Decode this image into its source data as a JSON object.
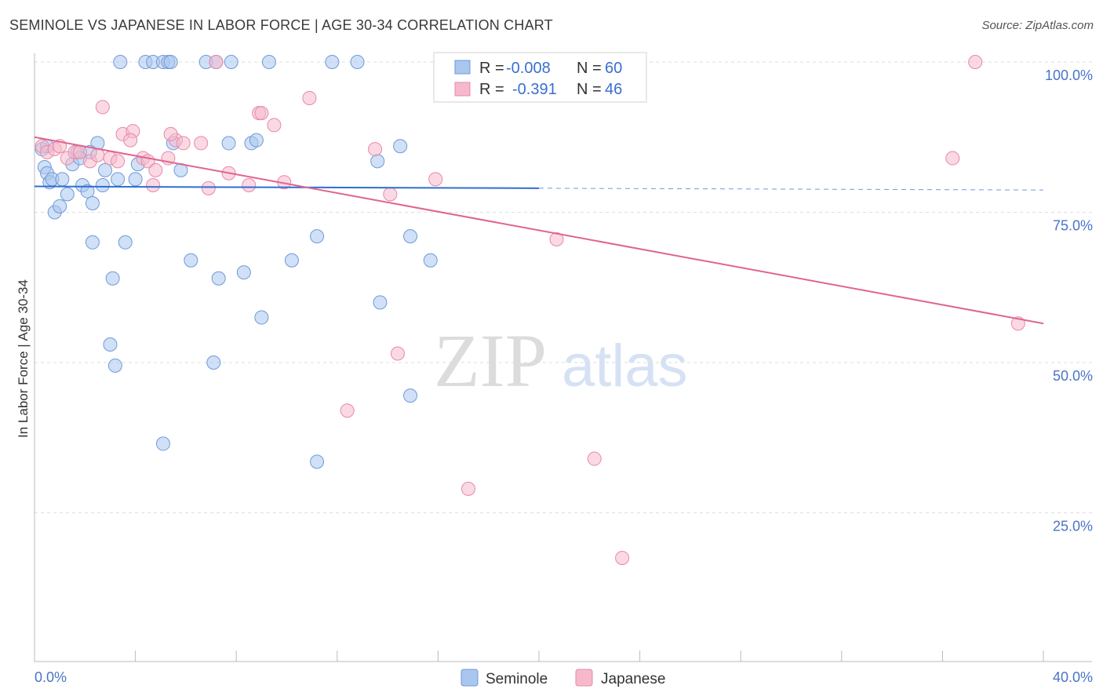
{
  "title": "SEMINOLE VS JAPANESE IN LABOR FORCE | AGE 30-34 CORRELATION CHART",
  "source": "Source: ZipAtlas.com",
  "watermark": {
    "zip": "ZIP",
    "atlas": "atlas"
  },
  "colors": {
    "seminole_fill": "#a9c6ef",
    "seminole_stroke": "#6f9ad8",
    "seminole_line": "#2f6fd0",
    "japanese_fill": "#f6b9cc",
    "japanese_stroke": "#e888a8",
    "japanese_line": "#e0648f",
    "axis_text": "#4a74c9",
    "grid": "#dddddd"
  },
  "legend": {
    "rows": [
      {
        "r_label": "R =",
        "r_value": "-0.008",
        "n_label": "N =",
        "n_value": "60"
      },
      {
        "r_label": "R =",
        "r_value": "-0.391",
        "n_label": "N =",
        "n_value": "46"
      }
    ]
  },
  "bottom_legend": {
    "seminole": "Seminole",
    "japanese": "Japanese"
  },
  "chart_data": {
    "type": "scatter",
    "title": "SEMINOLE VS JAPANESE IN LABOR FORCE | AGE 30-34 CORRELATION CHART",
    "xlabel": "",
    "ylabel": "In Labor Force | Age 30-34",
    "xlim": [
      0,
      40
    ],
    "ylim": [
      0,
      100
    ],
    "x_tick_labels": [
      "0.0%",
      "40.0%"
    ],
    "y_ticks": [
      25,
      50,
      75,
      100
    ],
    "y_tick_labels": [
      "25.0%",
      "50.0%",
      "75.0%",
      "100.0%"
    ],
    "grid": true,
    "legend_position": "top-center",
    "series": [
      {
        "name": "Seminole",
        "r": -0.008,
        "n": 60,
        "trend": {
          "x0": 0,
          "y0": 79.3,
          "x1": 20,
          "y1": 79.0,
          "dash_to_x": 40,
          "dash_to_y": 78.7
        },
        "points": [
          [
            0.3,
            85.5
          ],
          [
            0.4,
            82.5
          ],
          [
            0.5,
            81.5
          ],
          [
            0.6,
            80
          ],
          [
            0.7,
            80.5
          ],
          [
            0.8,
            75
          ],
          [
            1.0,
            76
          ],
          [
            1.1,
            80.5
          ],
          [
            1.3,
            78
          ],
          [
            1.5,
            83
          ],
          [
            1.7,
            85
          ],
          [
            1.9,
            79.5
          ],
          [
            2.1,
            78.5
          ],
          [
            2.3,
            76.5
          ],
          [
            2.5,
            86.5
          ],
          [
            2.7,
            79.5
          ],
          [
            2.8,
            82
          ],
          [
            3.3,
            80.5
          ],
          [
            4.0,
            80.5
          ],
          [
            4.1,
            83
          ],
          [
            5.5,
            86.5
          ],
          [
            5.8,
            82
          ],
          [
            3.4,
            100
          ],
          [
            4.4,
            100
          ],
          [
            4.7,
            100
          ],
          [
            5.1,
            100
          ],
          [
            5.3,
            100
          ],
          [
            5.4,
            100
          ],
          [
            6.8,
            100
          ],
          [
            7.2,
            100
          ],
          [
            7.8,
            100
          ],
          [
            9.3,
            100
          ],
          [
            11.8,
            100
          ],
          [
            12.8,
            100
          ],
          [
            7.7,
            86.5
          ],
          [
            8.6,
            86.5
          ],
          [
            8.8,
            87
          ],
          [
            3.6,
            70
          ],
          [
            2.3,
            70
          ],
          [
            6.2,
            67
          ],
          [
            10.2,
            67
          ],
          [
            3.1,
            64
          ],
          [
            7.3,
            64
          ],
          [
            8.3,
            65
          ],
          [
            9.0,
            57.5
          ],
          [
            3.0,
            53
          ],
          [
            3.2,
            49.5
          ],
          [
            7.1,
            50
          ],
          [
            11.2,
            71
          ],
          [
            14.9,
            71
          ],
          [
            15.7,
            67
          ],
          [
            13.7,
            60
          ],
          [
            14.9,
            44.5
          ],
          [
            5.1,
            36.5
          ],
          [
            11.2,
            33.5
          ],
          [
            13.6,
            83.5
          ],
          [
            14.5,
            86
          ],
          [
            2.2,
            85
          ],
          [
            0.5,
            86
          ],
          [
            1.8,
            84
          ]
        ]
      },
      {
        "name": "Japanese",
        "r": -0.391,
        "n": 46,
        "trend": {
          "x0": 0,
          "y0": 87.5,
          "x1": 40,
          "y1": 56.5
        },
        "points": [
          [
            0.3,
            86
          ],
          [
            0.5,
            85
          ],
          [
            0.8,
            85.5
          ],
          [
            1.0,
            86
          ],
          [
            1.3,
            84
          ],
          [
            1.6,
            85
          ],
          [
            1.8,
            85
          ],
          [
            2.2,
            83.5
          ],
          [
            2.5,
            84.5
          ],
          [
            3.0,
            84
          ],
          [
            3.3,
            83.5
          ],
          [
            3.5,
            88
          ],
          [
            3.9,
            88.5
          ],
          [
            4.3,
            84
          ],
          [
            4.5,
            83.5
          ],
          [
            4.7,
            79.5
          ],
          [
            4.8,
            82
          ],
          [
            5.3,
            84
          ],
          [
            5.6,
            87
          ],
          [
            5.9,
            86.5
          ],
          [
            6.6,
            86.5
          ],
          [
            6.9,
            79
          ],
          [
            7.7,
            81.5
          ],
          [
            8.5,
            79.5
          ],
          [
            8.9,
            91.5
          ],
          [
            9.0,
            91.5
          ],
          [
            9.5,
            89.5
          ],
          [
            9.9,
            80
          ],
          [
            10.9,
            94
          ],
          [
            3.8,
            87
          ],
          [
            2.7,
            92.5
          ],
          [
            5.4,
            88
          ],
          [
            7.2,
            100
          ],
          [
            13.5,
            85.5
          ],
          [
            14.1,
            78
          ],
          [
            15.9,
            80.5
          ],
          [
            20.7,
            70.5
          ],
          [
            37.3,
            100
          ],
          [
            36.4,
            84
          ],
          [
            39.0,
            56.5
          ],
          [
            14.4,
            51.5
          ],
          [
            12.4,
            42
          ],
          [
            22.2,
            34
          ],
          [
            17.2,
            29
          ],
          [
            23.3,
            17.5
          ],
          [
            17.1,
            100
          ]
        ]
      }
    ]
  }
}
